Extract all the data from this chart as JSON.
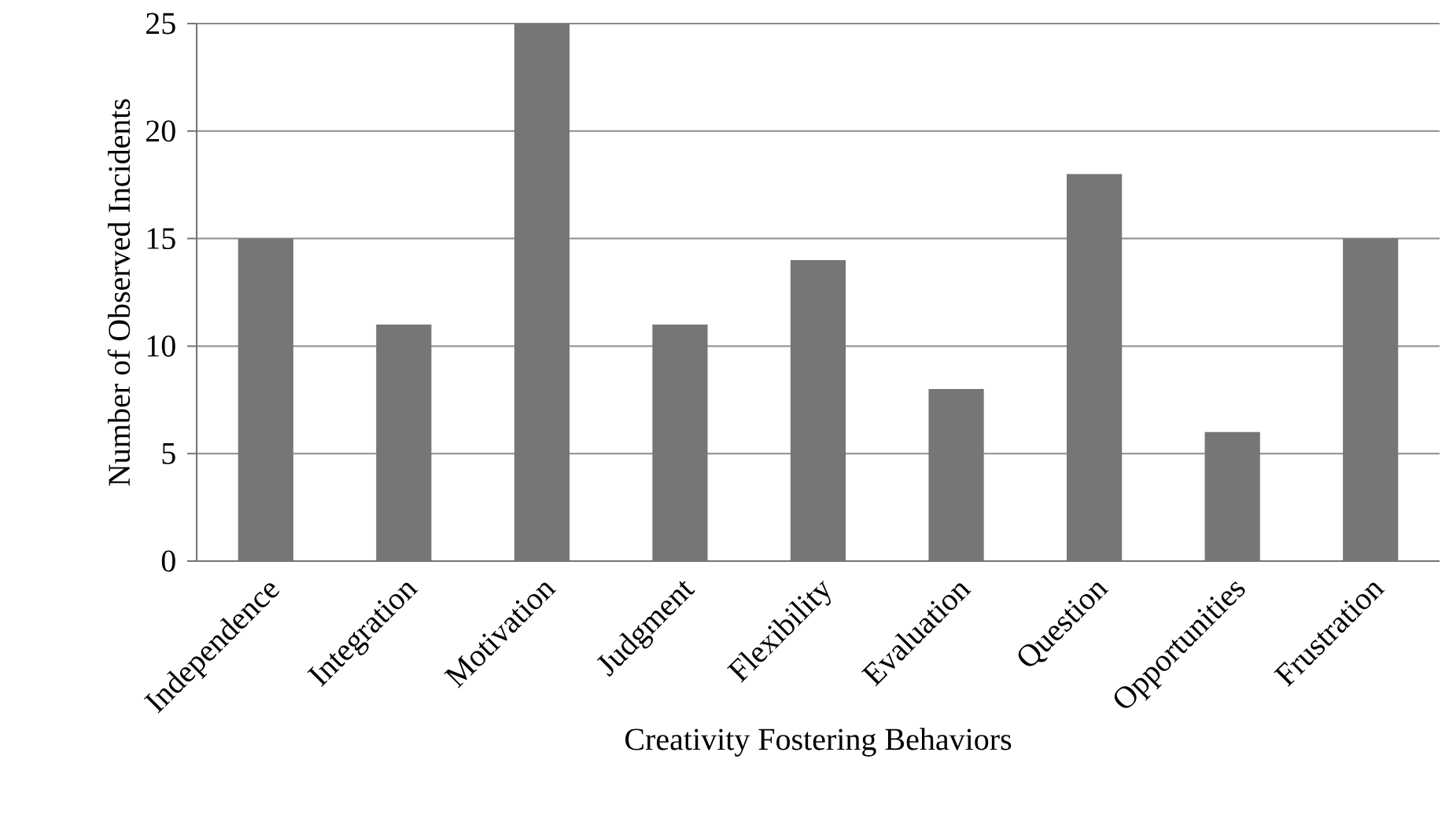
{
  "chart_data": {
    "type": "bar",
    "xlabel": "Creativity Fostering Behaviors",
    "ylabel": "Number of Observed Incidents",
    "categories": [
      "Independence",
      "Integration",
      "Motivation",
      "Judgment",
      "Flexibility",
      "Evaluation",
      "Question",
      "Opportunities",
      "Frustration"
    ],
    "values": [
      15,
      11,
      25,
      11,
      14,
      8,
      18,
      6,
      15
    ],
    "color": "#767676",
    "ylim": [
      0,
      25
    ],
    "yticks": [
      0,
      5,
      10,
      15,
      20,
      25
    ],
    "grid": "y"
  }
}
